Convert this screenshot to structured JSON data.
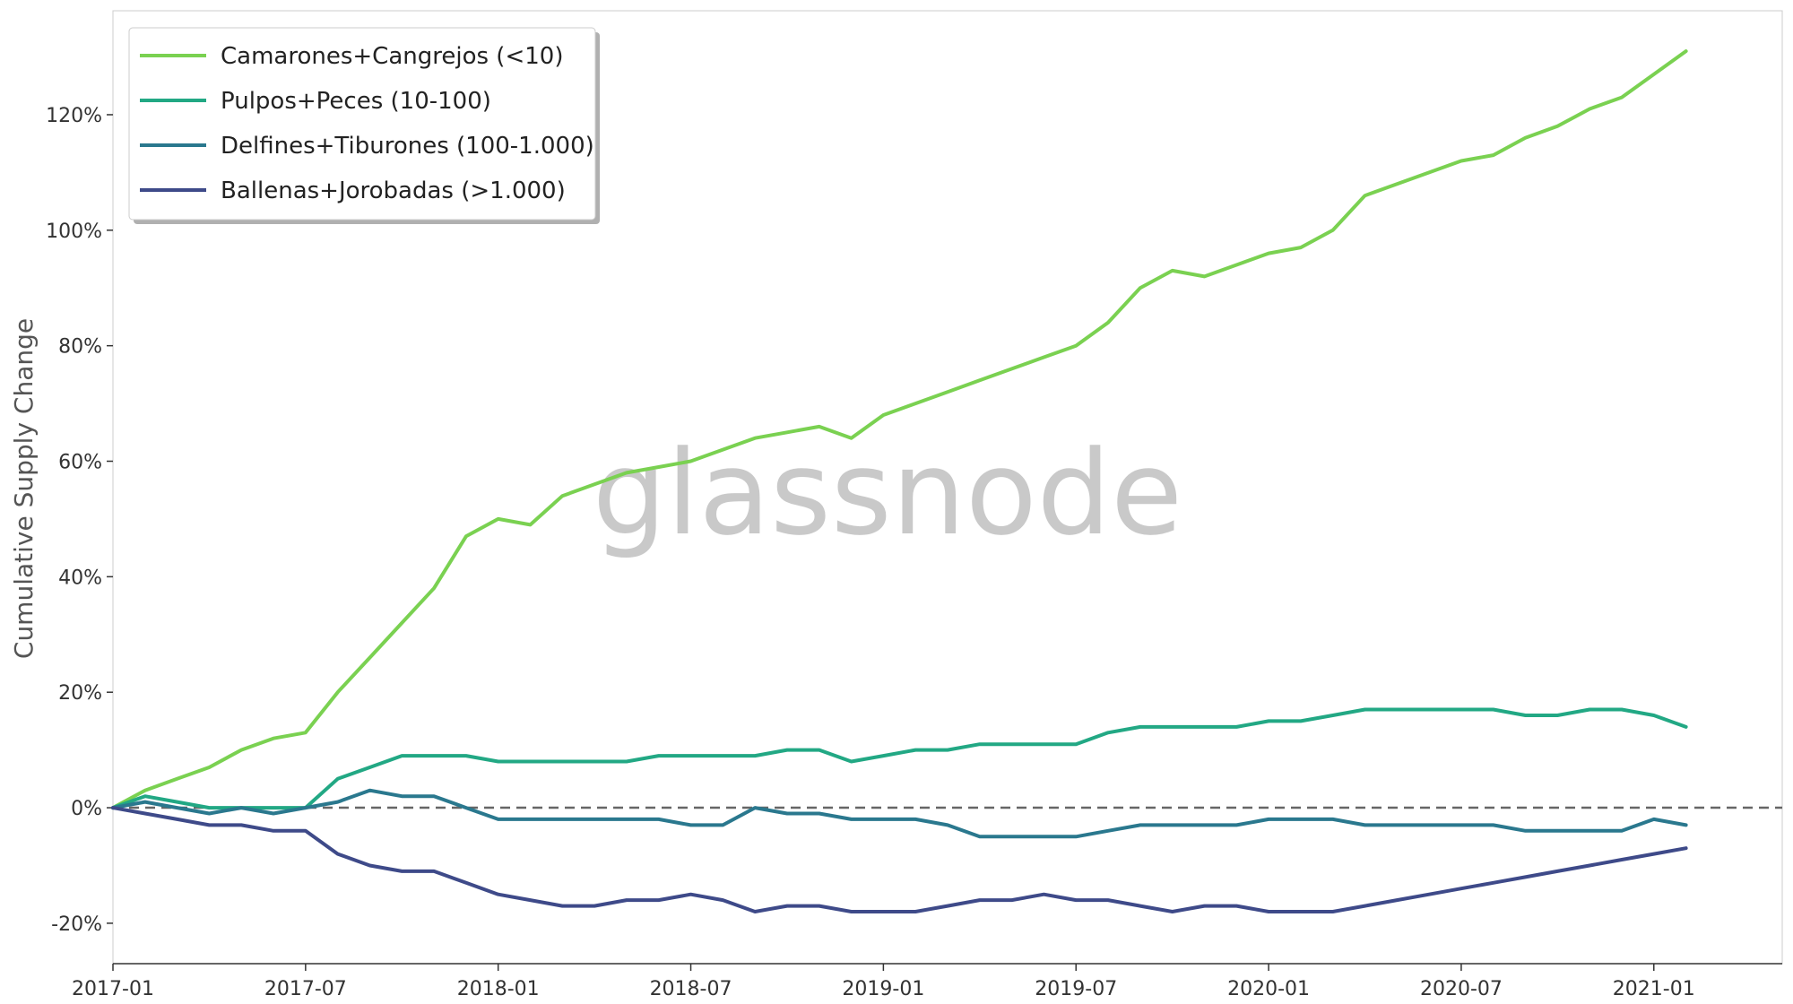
{
  "chart_data": {
    "type": "line",
    "title": "",
    "xlabel": "",
    "ylabel": "Cumulative Supply Change",
    "watermark": "glassnode",
    "xlim": [
      "2017-01",
      "2021-05"
    ],
    "ylim": [
      -27,
      138
    ],
    "x_ticks": [
      "2017-01",
      "2017-07",
      "2018-01",
      "2018-07",
      "2019-01",
      "2019-07",
      "2020-01",
      "2020-07",
      "2021-01"
    ],
    "y_ticks": [
      "-20%",
      "0%",
      "20%",
      "40%",
      "60%",
      "80%",
      "100%",
      "120%"
    ],
    "y_tick_values": [
      -20,
      0,
      20,
      40,
      60,
      80,
      100,
      120
    ],
    "baseline": 0,
    "grid": false,
    "legend_position": "top-left",
    "series": [
      {
        "name": "Camarones+Cangrejos (<10)",
        "color": "#7ad151",
        "x": [
          "2017-01",
          "2017-02",
          "2017-03",
          "2017-04",
          "2017-05",
          "2017-06",
          "2017-07",
          "2017-08",
          "2017-09",
          "2017-10",
          "2017-11",
          "2017-12",
          "2018-01",
          "2018-02",
          "2018-03",
          "2018-04",
          "2018-05",
          "2018-06",
          "2018-07",
          "2018-08",
          "2018-09",
          "2018-10",
          "2018-11",
          "2018-12",
          "2019-01",
          "2019-02",
          "2019-03",
          "2019-04",
          "2019-05",
          "2019-06",
          "2019-07",
          "2019-08",
          "2019-09",
          "2019-10",
          "2019-11",
          "2019-12",
          "2020-01",
          "2020-02",
          "2020-03",
          "2020-04",
          "2020-05",
          "2020-06",
          "2020-07",
          "2020-08",
          "2020-09",
          "2020-10",
          "2020-11",
          "2020-12",
          "2021-01",
          "2021-02"
        ],
        "values": [
          0,
          3,
          5,
          7,
          10,
          12,
          13,
          20,
          26,
          32,
          38,
          47,
          50,
          49,
          54,
          56,
          58,
          59,
          60,
          62,
          64,
          65,
          66,
          64,
          68,
          70,
          72,
          74,
          76,
          78,
          80,
          84,
          90,
          93,
          92,
          94,
          96,
          97,
          100,
          106,
          108,
          110,
          112,
          113,
          116,
          118,
          121,
          123,
          127,
          131
        ]
      },
      {
        "name": "Pulpos+Peces (10-100)",
        "color": "#22a884",
        "x": [
          "2017-01",
          "2017-02",
          "2017-03",
          "2017-04",
          "2017-05",
          "2017-06",
          "2017-07",
          "2017-08",
          "2017-09",
          "2017-10",
          "2017-11",
          "2017-12",
          "2018-01",
          "2018-02",
          "2018-03",
          "2018-04",
          "2018-05",
          "2018-06",
          "2018-07",
          "2018-08",
          "2018-09",
          "2018-10",
          "2018-11",
          "2018-12",
          "2019-01",
          "2019-02",
          "2019-03",
          "2019-04",
          "2019-05",
          "2019-06",
          "2019-07",
          "2019-08",
          "2019-09",
          "2019-10",
          "2019-11",
          "2019-12",
          "2020-01",
          "2020-02",
          "2020-03",
          "2020-04",
          "2020-05",
          "2020-06",
          "2020-07",
          "2020-08",
          "2020-09",
          "2020-10",
          "2020-11",
          "2020-12",
          "2021-01",
          "2021-02"
        ],
        "values": [
          0,
          2,
          1,
          0,
          0,
          0,
          0,
          5,
          7,
          9,
          9,
          9,
          8,
          8,
          8,
          8,
          8,
          9,
          9,
          9,
          9,
          10,
          10,
          8,
          9,
          10,
          10,
          11,
          11,
          11,
          11,
          13,
          14,
          14,
          14,
          14,
          15,
          15,
          16,
          17,
          17,
          17,
          17,
          17,
          16,
          16,
          17,
          17,
          16,
          14
        ]
      },
      {
        "name": "Delfines+Tiburones (100-1.000)",
        "color": "#2a788e",
        "x": [
          "2017-01",
          "2017-02",
          "2017-03",
          "2017-04",
          "2017-05",
          "2017-06",
          "2017-07",
          "2017-08",
          "2017-09",
          "2017-10",
          "2017-11",
          "2017-12",
          "2018-01",
          "2018-02",
          "2018-03",
          "2018-04",
          "2018-05",
          "2018-06",
          "2018-07",
          "2018-08",
          "2018-09",
          "2018-10",
          "2018-11",
          "2018-12",
          "2019-01",
          "2019-02",
          "2019-03",
          "2019-04",
          "2019-05",
          "2019-06",
          "2019-07",
          "2019-08",
          "2019-09",
          "2019-10",
          "2019-11",
          "2019-12",
          "2020-01",
          "2020-02",
          "2020-03",
          "2020-04",
          "2020-05",
          "2020-06",
          "2020-07",
          "2020-08",
          "2020-09",
          "2020-10",
          "2020-11",
          "2020-12",
          "2021-01",
          "2021-02"
        ],
        "values": [
          0,
          1,
          0,
          -1,
          0,
          -1,
          0,
          1,
          3,
          2,
          2,
          0,
          -2,
          -2,
          -2,
          -2,
          -2,
          -2,
          -3,
          -3,
          0,
          -1,
          -1,
          -2,
          -2,
          -2,
          -3,
          -5,
          -5,
          -5,
          -5,
          -4,
          -3,
          -3,
          -3,
          -3,
          -2,
          -2,
          -2,
          -3,
          -3,
          -3,
          -3,
          -3,
          -4,
          -4,
          -4,
          -4,
          -2,
          -3
        ]
      },
      {
        "name": "Ballenas+Jorobadas (>1.000)",
        "color": "#3e4a89",
        "x": [
          "2017-01",
          "2017-02",
          "2017-03",
          "2017-04",
          "2017-05",
          "2017-06",
          "2017-07",
          "2017-08",
          "2017-09",
          "2017-10",
          "2017-11",
          "2017-12",
          "2018-01",
          "2018-02",
          "2018-03",
          "2018-04",
          "2018-05",
          "2018-06",
          "2018-07",
          "2018-08",
          "2018-09",
          "2018-10",
          "2018-11",
          "2018-12",
          "2019-01",
          "2019-02",
          "2019-03",
          "2019-04",
          "2019-05",
          "2019-06",
          "2019-07",
          "2019-08",
          "2019-09",
          "2019-10",
          "2019-11",
          "2019-12",
          "2020-01",
          "2020-02",
          "2020-03",
          "2020-04",
          "2020-05",
          "2020-06",
          "2020-07",
          "2020-08",
          "2020-09",
          "2020-10",
          "2020-11",
          "2020-12",
          "2021-01",
          "2021-02"
        ],
        "values": [
          0,
          -1,
          -2,
          -3,
          -3,
          -4,
          -4,
          -8,
          -10,
          -11,
          -11,
          -13,
          -15,
          -16,
          -17,
          -17,
          -16,
          -16,
          -15,
          -16,
          -18,
          -17,
          -17,
          -18,
          -18,
          -18,
          -17,
          -16,
          -16,
          -15,
          -16,
          -16,
          -17,
          -18,
          -17,
          -17,
          -18,
          -18,
          -18,
          -17,
          -16,
          -15,
          -14,
          -13,
          -12,
          -11,
          -10,
          -9,
          -8,
          -7
        ]
      }
    ]
  }
}
